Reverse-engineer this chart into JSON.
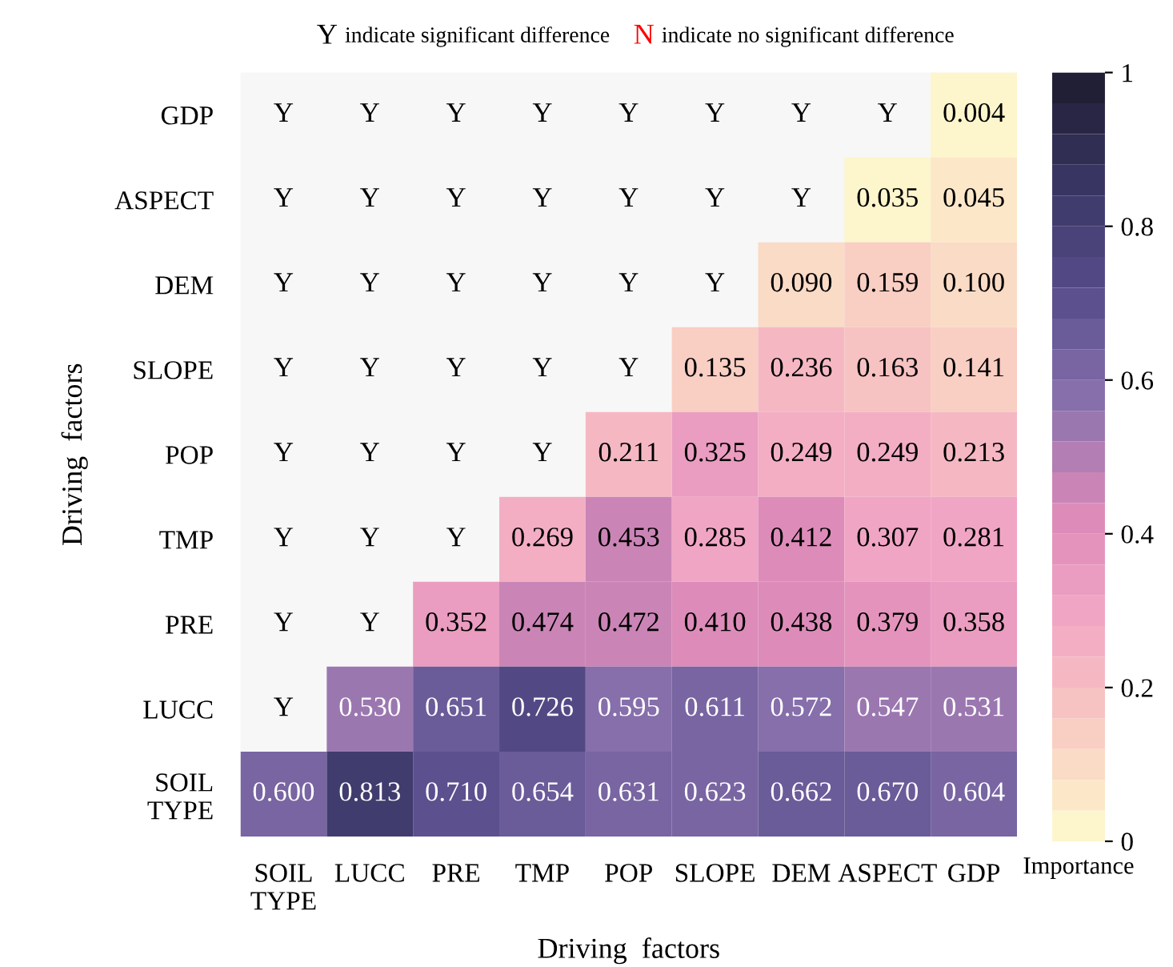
{
  "chart_data": {
    "type": "heatmap",
    "categories": [
      "SOIL TYPE",
      "LUCC",
      "PRE",
      "TMP",
      "POP",
      "SLOPE",
      "DEM",
      "ASPECT",
      "GDP"
    ],
    "y_categories": [
      "GDP",
      "ASPECT",
      "DEM",
      "SLOPE",
      "POP",
      "TMP",
      "PRE",
      "LUCC",
      "SOIL TYPE"
    ],
    "cells": [
      [
        null,
        null,
        null,
        null,
        null,
        null,
        null,
        null,
        0.004
      ],
      [
        null,
        null,
        null,
        null,
        null,
        null,
        null,
        0.035,
        0.045
      ],
      [
        null,
        null,
        null,
        null,
        null,
        null,
        0.09,
        0.159,
        0.1
      ],
      [
        null,
        null,
        null,
        null,
        null,
        0.135,
        0.236,
        0.163,
        0.141
      ],
      [
        null,
        null,
        null,
        null,
        0.211,
        0.325,
        0.249,
        0.249,
        0.213
      ],
      [
        null,
        null,
        null,
        0.269,
        0.453,
        0.285,
        0.412,
        0.307,
        0.281
      ],
      [
        null,
        null,
        0.352,
        0.474,
        0.472,
        0.41,
        0.438,
        0.379,
        0.358
      ],
      [
        null,
        0.53,
        0.651,
        0.726,
        0.595,
        0.611,
        0.572,
        0.547,
        0.531
      ],
      [
        0.6,
        0.813,
        0.71,
        0.654,
        0.631,
        0.623,
        0.662,
        0.67,
        0.604
      ]
    ],
    "cell_labels": [
      [
        "Y",
        "Y",
        "Y",
        "Y",
        "Y",
        "Y",
        "Y",
        "Y",
        "0.004"
      ],
      [
        "Y",
        "Y",
        "Y",
        "Y",
        "Y",
        "Y",
        "Y",
        "0.035",
        "0.045"
      ],
      [
        "Y",
        "Y",
        "Y",
        "Y",
        "Y",
        "Y",
        "0.090",
        "0.159",
        "0.100"
      ],
      [
        "Y",
        "Y",
        "Y",
        "Y",
        "Y",
        "0.135",
        "0.236",
        "0.163",
        "0.141"
      ],
      [
        "Y",
        "Y",
        "Y",
        "Y",
        "0.211",
        "0.325",
        "0.249",
        "0.249",
        "0.213"
      ],
      [
        "Y",
        "Y",
        "Y",
        "0.269",
        "0.453",
        "0.285",
        "0.412",
        "0.307",
        "0.281"
      ],
      [
        "Y",
        "Y",
        "0.352",
        "0.474",
        "0.472",
        "0.410",
        "0.438",
        "0.379",
        "0.358"
      ],
      [
        "Y",
        "0.530",
        "0.651",
        "0.726",
        "0.595",
        "0.611",
        "0.572",
        "0.547",
        "0.531"
      ],
      [
        "0.600",
        "0.813",
        "0.710",
        "0.654",
        "0.631",
        "0.623",
        "0.662",
        "0.670",
        "0.604"
      ]
    ],
    "clim": [
      0,
      1
    ],
    "cticks": [
      0,
      0.2,
      0.4,
      0.6,
      0.8,
      1
    ],
    "clabel": "Importance",
    "xlabel": "Driving  factors",
    "ylabel": "Driving  factors",
    "annotations": [
      "Y indicate significant difference",
      "N indicate no significant difference"
    ]
  }
}
